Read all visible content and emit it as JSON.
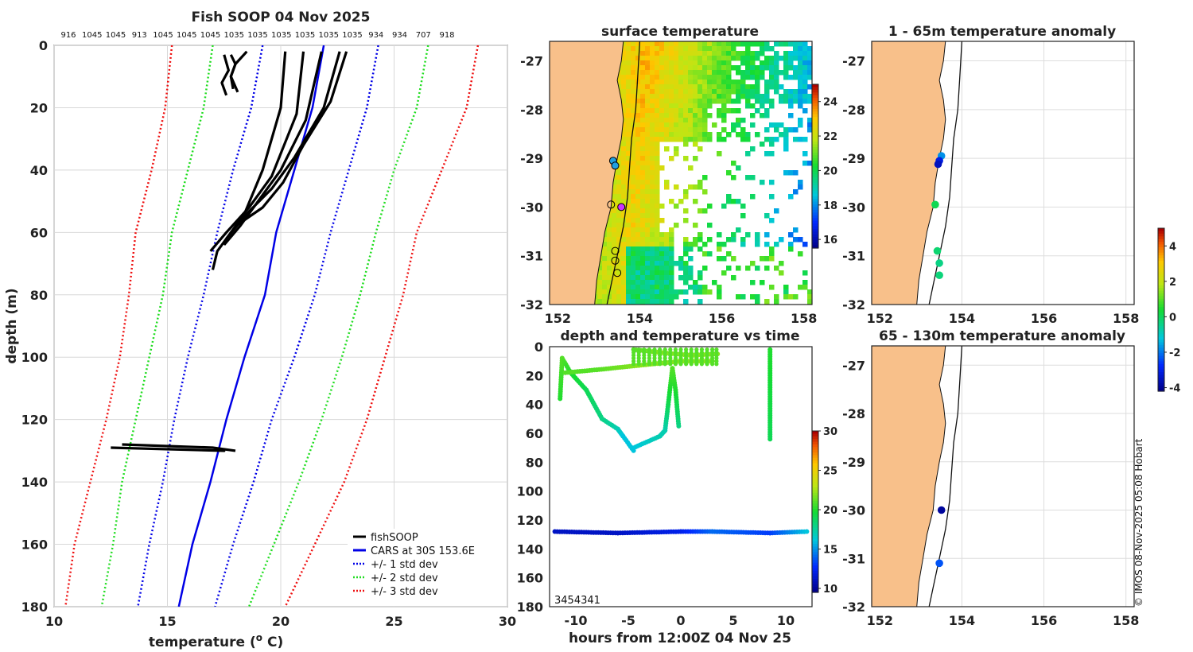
{
  "chart_data": [
    {
      "type": "line",
      "title": "Fish SOOP 04 Nov 2025",
      "xlabel": "temperature",
      "xlabel_unit": "o C",
      "ylabel": "depth (m)",
      "xlim": [
        10,
        30
      ],
      "ylim": [
        0,
        180
      ],
      "x_ticks": [
        10,
        15,
        20,
        25,
        30
      ],
      "y_ticks": [
        0,
        20,
        40,
        60,
        80,
        100,
        120,
        140,
        160,
        180
      ],
      "top_tick_labels": [
        "916",
        "1045",
        "1045",
        "913",
        "1045",
        "1045",
        "1045",
        "1035",
        "1035",
        "1035",
        "1035",
        "1035",
        "1035",
        "934",
        "934",
        "707",
        "918"
      ],
      "legend": [
        "fishSOOP",
        "CARS at 30S 153.6E",
        "+/- 1 std dev",
        "+/- 2 std dev",
        "+/- 3 std dev"
      ],
      "series": [
        {
          "name": "CARS at 30S 153.6E",
          "depth": [
            0,
            20,
            40,
            60,
            80,
            100,
            120,
            140,
            160,
            180
          ],
          "temp": [
            21.9,
            21.4,
            20.6,
            19.8,
            19.3,
            18.4,
            17.6,
            16.9,
            16.1,
            15.5
          ]
        },
        {
          "name": "+1 std dev",
          "depth": [
            0,
            20,
            40,
            60,
            80,
            100,
            120,
            140,
            160,
            180
          ],
          "temp": [
            24.3,
            23.8,
            23.0,
            22.2,
            21.5,
            20.6,
            19.6,
            18.8,
            17.9,
            17.1
          ]
        },
        {
          "name": "-1 std dev",
          "depth": [
            0,
            20,
            40,
            60,
            80,
            100,
            120,
            140,
            160,
            180
          ],
          "temp": [
            19.2,
            18.7,
            17.9,
            17.2,
            16.6,
            15.9,
            15.3,
            14.8,
            14.2,
            13.7
          ]
        },
        {
          "name": "+2 std dev",
          "depth": [
            0,
            20,
            40,
            60,
            80,
            100,
            120,
            140,
            160,
            180
          ],
          "temp": [
            26.5,
            26.0,
            25.0,
            24.2,
            23.5,
            22.7,
            21.8,
            20.8,
            19.7,
            18.6
          ]
        },
        {
          "name": "-2 std dev",
          "depth": [
            0,
            20,
            40,
            60,
            80,
            100,
            120,
            140,
            160,
            180
          ],
          "temp": [
            17.0,
            16.6,
            15.9,
            15.2,
            14.8,
            14.2,
            13.6,
            13.0,
            12.6,
            12.1
          ]
        },
        {
          "name": "+3 std dev",
          "depth": [
            0,
            20,
            40,
            60,
            80,
            100,
            120,
            140,
            160,
            180
          ],
          "temp": [
            28.7,
            28.2,
            27.1,
            26.0,
            25.4,
            24.6,
            23.8,
            22.8,
            21.5,
            20.2
          ]
        },
        {
          "name": "-3 std dev",
          "depth": [
            0,
            20,
            40,
            60,
            80,
            100,
            120,
            140,
            160,
            180
          ],
          "temp": [
            15.2,
            14.9,
            14.3,
            13.6,
            13.3,
            12.9,
            12.3,
            11.6,
            10.9,
            10.5
          ]
        }
      ],
      "profiles": [
        {
          "depth": [
            3,
            8,
            12,
            16
          ],
          "temp": [
            17.5,
            17.7,
            17.4,
            17.6
          ]
        },
        {
          "depth": [
            3,
            6,
            10,
            15
          ],
          "temp": [
            17.8,
            18.0,
            17.8,
            18.1
          ]
        },
        {
          "depth": [
            2,
            6,
            10,
            14
          ],
          "temp": [
            18.5,
            18.0,
            17.8,
            17.9
          ]
        },
        {
          "depth": [
            2,
            20,
            40,
            54,
            66,
            72
          ],
          "temp": [
            20.2,
            20.0,
            19.2,
            18.4,
            17.2,
            17.0
          ]
        },
        {
          "depth": [
            2,
            22,
            42,
            52,
            60,
            66
          ],
          "temp": [
            21.0,
            20.7,
            19.6,
            18.6,
            17.6,
            16.9
          ]
        },
        {
          "depth": [
            2,
            24,
            40,
            50,
            58,
            64
          ],
          "temp": [
            21.8,
            21.1,
            20.0,
            19.0,
            18.2,
            17.5
          ]
        },
        {
          "depth": [
            2,
            20,
            36,
            46,
            54,
            62
          ],
          "temp": [
            22.6,
            21.9,
            20.6,
            19.6,
            18.5,
            17.6
          ]
        },
        {
          "depth": [
            2,
            18,
            32,
            44,
            52,
            58
          ],
          "temp": [
            22.9,
            22.2,
            21.0,
            20.1,
            19.2,
            18.0
          ]
        },
        {
          "depth": [
            128,
            129,
            130
          ],
          "temp": [
            13.0,
            17.0,
            18.0
          ]
        },
        {
          "depth": [
            129,
            130,
            129.5
          ],
          "temp": [
            12.5,
            17.5,
            15.0
          ]
        }
      ]
    },
    {
      "type": "heatmap",
      "title": "surface temperature",
      "xlim": [
        151.8,
        158.2
      ],
      "ylim": [
        -32,
        -26.6
      ],
      "x_ticks": [
        152,
        154,
        156,
        158
      ],
      "y_ticks": [
        -27,
        -28,
        -29,
        -30,
        -31,
        -32
      ],
      "colorbar_ticks": [
        16,
        18,
        20,
        22,
        24
      ],
      "colorbar_range": [
        15.5,
        25
      ],
      "stations": [
        [
          153.35,
          -29.05
        ],
        [
          153.4,
          -29.15
        ],
        [
          153.3,
          -29.95
        ],
        [
          153.55,
          -30.0
        ],
        [
          153.4,
          -30.9
        ],
        [
          153.4,
          -31.1
        ],
        [
          153.45,
          -31.35
        ]
      ]
    },
    {
      "type": "scatter",
      "title": "depth and temperature vs time",
      "xlabel": "hours from 12:00Z 04 Nov 25",
      "xlim": [
        -12.5,
        12.5
      ],
      "ylim": [
        0,
        180
      ],
      "x_ticks": [
        -10,
        -5,
        0,
        5,
        10
      ],
      "y_ticks": [
        0,
        20,
        40,
        60,
        80,
        100,
        120,
        140,
        160,
        180
      ],
      "colorbar_ticks": [
        10,
        15,
        20,
        25,
        30
      ],
      "colorbar_range": [
        9.5,
        30
      ],
      "overlap_label": "3454341",
      "segments": [
        {
          "x": [
            -11.5,
            -11.3,
            -10.5,
            -9.0,
            -7.5,
            -6.0,
            -5.5,
            -4.5
          ],
          "y": [
            36,
            8,
            18,
            30,
            50,
            57,
            62,
            72
          ],
          "temp": [
            20,
            21,
            20,
            19,
            18,
            17,
            16,
            16
          ]
        },
        {
          "x": [
            -4.5,
            -2.0,
            -1.5
          ],
          "y": [
            70,
            62,
            58
          ],
          "temp": [
            16,
            17,
            17
          ]
        },
        {
          "x": [
            -1.5,
            -1.2,
            -0.8,
            -0.5,
            -0.2
          ],
          "y": [
            58,
            40,
            15,
            30,
            55
          ],
          "temp": [
            17,
            19,
            21,
            20,
            18
          ]
        },
        {
          "x": [
            -11.0,
            -8.0,
            -4.0,
            0.0,
            3.0
          ],
          "y": [
            18,
            16,
            13,
            10,
            10
          ],
          "temp": [
            21,
            21,
            22,
            22,
            22
          ]
        },
        {
          "x": [
            -4.5,
            -2.0,
            1.0,
            3.5
          ],
          "y": [
            2,
            4,
            6,
            5
          ],
          "temp": [
            21,
            22,
            22,
            22
          ]
        },
        {
          "x": [
            8.5,
            8.5
          ],
          "y": [
            2,
            64
          ],
          "temp": [
            20,
            19
          ]
        },
        {
          "x": [
            -12.0,
            -6.0,
            0.0,
            3.0,
            8.5,
            12.0
          ],
          "y": [
            128,
            129,
            128,
            128,
            129,
            128
          ],
          "temp": [
            11,
            11,
            12,
            14,
            13,
            16
          ]
        }
      ]
    },
    {
      "type": "scatter",
      "title": "1 - 65m temperature anomaly",
      "xlim": [
        151.8,
        158.2
      ],
      "ylim": [
        -32,
        -26.6
      ],
      "x_ticks": [
        152,
        154,
        156,
        158
      ],
      "y_ticks": [
        -27,
        -28,
        -29,
        -30,
        -31,
        -32
      ],
      "points": [
        {
          "lon": 153.5,
          "lat": -28.95,
          "anom": -1.8
        },
        {
          "lon": 153.45,
          "lat": -29.05,
          "anom": -3.2
        },
        {
          "lon": 153.42,
          "lat": -29.12,
          "anom": -3.6
        },
        {
          "lon": 153.35,
          "lat": -29.95,
          "anom": 0.1
        },
        {
          "lon": 153.4,
          "lat": -30.9,
          "anom": -0.2
        },
        {
          "lon": 153.45,
          "lat": -31.15,
          "anom": -0.4
        },
        {
          "lon": 153.45,
          "lat": -31.4,
          "anom": -0.3
        }
      ]
    },
    {
      "type": "scatter",
      "title": "65 - 130m temperature anomaly",
      "xlim": [
        151.8,
        158.2
      ],
      "ylim": [
        -32,
        -26.6
      ],
      "x_ticks": [
        152,
        154,
        156,
        158
      ],
      "y_ticks": [
        -27,
        -28,
        -29,
        -30,
        -31,
        -32
      ],
      "colorbar_ticks": [
        4,
        2,
        0,
        -2,
        -4
      ],
      "colorbar_range": [
        -4.2,
        5
      ],
      "points": [
        {
          "lon": 153.5,
          "lat": -30.0,
          "anom": -4.0
        },
        {
          "lon": 153.45,
          "lat": -31.1,
          "anom": -2.4
        }
      ]
    }
  ],
  "credit": "© IMOS 08-Nov-2025 05:08 Hobart"
}
